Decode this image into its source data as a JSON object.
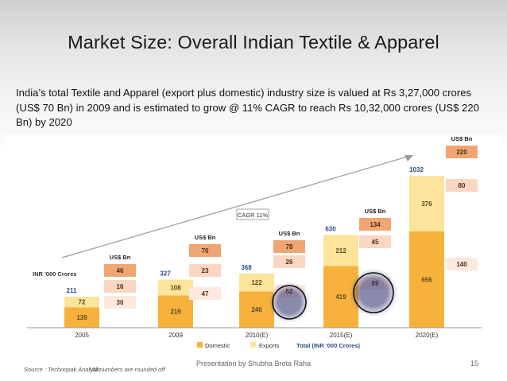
{
  "slide": {
    "title": "Market Size: Overall Indian Textile & Apparel",
    "description": "India’s total Textile and Apparel (export plus domestic) industry size is valued at Rs 3,27,000 crores (US$ 70 Bn) in 2009 and is estimated to grow @ 11% CAGR to reach Rs 10,32,000 crores (US$ 220 Bn) by 2020",
    "presenter": "Presentation by Shubha Brota Raha",
    "page_number": "15"
  },
  "chart_data": {
    "type": "bar",
    "stacked": true,
    "categories": [
      "2005",
      "2009",
      "2010(E)",
      "2015(E)",
      "2020(E)"
    ],
    "series": [
      {
        "name": "Domestic",
        "values": [
          139,
          219,
          246,
          419,
          656
        ],
        "color": "#f7b23b",
        "label_color": "#5a4a1e"
      },
      {
        "name": "Exports",
        "values": [
          72,
          108,
          122,
          212,
          376
        ],
        "color": "#fde49b",
        "label_color": "#5a4a1e"
      }
    ],
    "totals": [
      211,
      327,
      368,
      630,
      1032
    ],
    "totals_label": "Total (INR '000 Crores)",
    "totals_color": "#2e4a8a",
    "usd_bn": {
      "header": "US$ Bn",
      "total": [
        46,
        70,
        78,
        134,
        220
      ],
      "exports": [
        16,
        23,
        26,
        45,
        80
      ],
      "domestic": [
        30,
        47,
        52,
        89,
        140
      ],
      "total_color": "#f0a672",
      "exports_color": "#fbd6c2",
      "domestic_color": "#fde9dd"
    },
    "unit_label": "INR '000 Crores",
    "trend_label": "CAGR 11%",
    "highlighted": [
      "52",
      "89"
    ],
    "source": "Source : Technopak Analysis",
    "note": "*All numbers are rounded off",
    "ylim": [
      0,
      1032
    ]
  }
}
